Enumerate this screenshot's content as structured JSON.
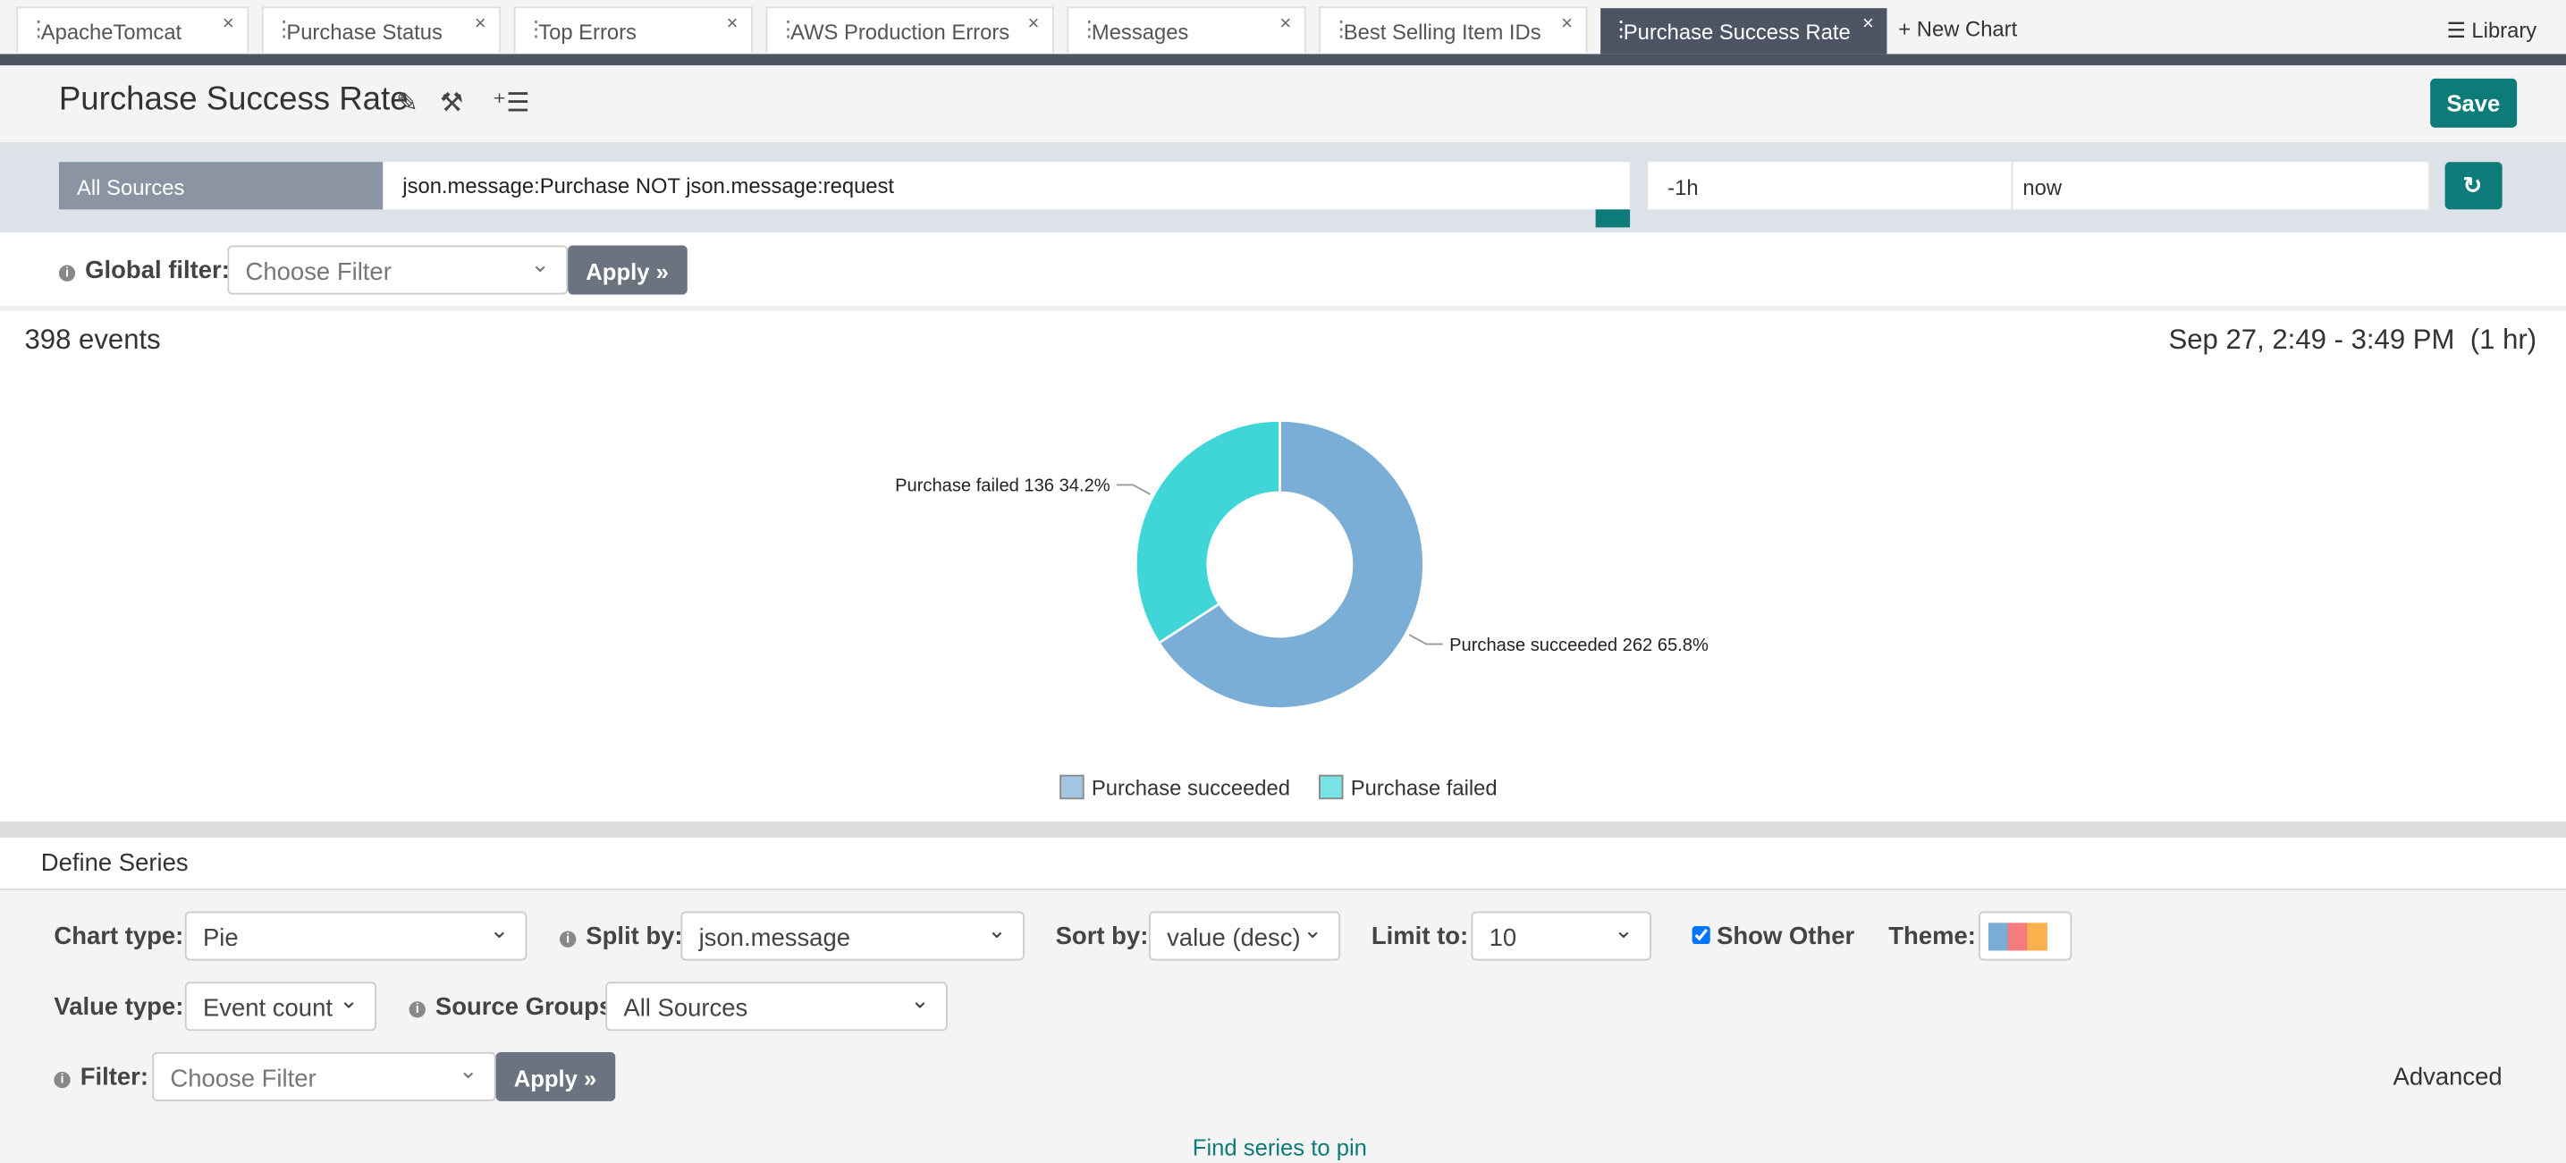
{
  "tabs": [
    "ApacheTomcat",
    "Purchase Status",
    "Top Errors",
    "AWS Production Errors",
    "Messages",
    "Best Selling Item IDs",
    "Purchase Success Rate"
  ],
  "new_chart": "New Chart",
  "library": "Library",
  "title": "Purchase Success Rate",
  "save": "Save",
  "query": {
    "source": "All Sources",
    "text": "json.message:Purchase NOT json.message:request",
    "from": "-1h",
    "to": "now"
  },
  "global_filter": {
    "label": "Global filter:",
    "placeholder": "Choose Filter",
    "apply": "Apply"
  },
  "events": "398 events",
  "time_range": "Sep 27, 2:49 - 3:49 PM  (1 hr)",
  "chart_data": {
    "type": "pie",
    "categories": [
      "Purchase succeeded",
      "Purchase failed"
    ],
    "values": [
      262,
      136
    ],
    "value_labels": [
      "Purchase succeeded 262 65.8%",
      "Purchase failed 136 34.2%"
    ],
    "colors": [
      "#7aaed6",
      "#40d6d8"
    ],
    "donut": true,
    "legend": "bottom"
  },
  "define_series": {
    "heading": "Define Series",
    "chart_type": {
      "label": "Chart type:",
      "value": "Pie"
    },
    "split_by": {
      "label": "Split by:",
      "value": "json.message"
    },
    "sort_by": {
      "label": "Sort by:",
      "value": "value (desc)"
    },
    "limit_to": {
      "label": "Limit to:",
      "value": "10"
    },
    "show_other": "Show Other",
    "theme": "Theme:",
    "value_type": {
      "label": "Value type:",
      "value": "Event count"
    },
    "source_groups": {
      "label": "Source Groups",
      "value": "All Sources"
    },
    "filter": {
      "label": "Filter:",
      "placeholder": "Choose Filter",
      "apply": "Apply"
    },
    "advanced": "Advanced"
  },
  "find_series": "Find series to pin"
}
